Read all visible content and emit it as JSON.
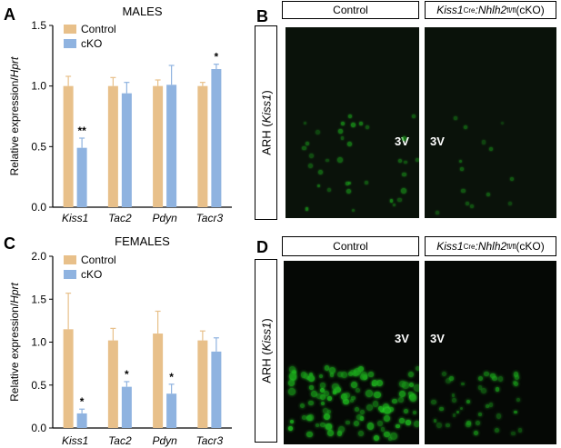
{
  "panels": {
    "A": "A",
    "B": "B",
    "C": "C",
    "D": "D"
  },
  "colors": {
    "control": "#E8C08A",
    "cko": "#8FB3E0",
    "gfp": "#2BD62B"
  },
  "chart_data": [
    {
      "type": "bar",
      "title": "MALES",
      "ylabel": "Relative expression/Hprt",
      "ylabel_plain": "Relative expression/",
      "ylabel_italic": "Hprt",
      "categories": [
        "Kiss1",
        "Tac2",
        "Pdyn",
        "Tacr3"
      ],
      "yticks": [
        "0.0",
        "0.5",
        "1.0",
        "1.5"
      ],
      "ylim": [
        0,
        1.5
      ],
      "legend": [
        "Control",
        "cKO"
      ],
      "series": [
        {
          "name": "Control",
          "values": [
            1.0,
            1.0,
            1.0,
            1.0
          ],
          "errors": [
            0.08,
            0.07,
            0.05,
            0.03
          ]
        },
        {
          "name": "cKO",
          "values": [
            0.49,
            0.94,
            1.01,
            1.14
          ],
          "errors": [
            0.08,
            0.09,
            0.16,
            0.04
          ]
        }
      ],
      "annotations": [
        {
          "category": "Kiss1",
          "series": "cKO",
          "text": "**"
        },
        {
          "category": "Tacr3",
          "series": "cKO",
          "text": "*"
        }
      ]
    },
    {
      "type": "bar",
      "title": "FEMALES",
      "ylabel": "Relative expression/Hprt",
      "ylabel_plain": "Relative expression/",
      "ylabel_italic": "Hprt",
      "categories": [
        "Kiss1",
        "Tac2",
        "Pdyn",
        "Tacr3"
      ],
      "yticks": [
        "0.0",
        "0.5",
        "1.0",
        "1.5",
        "2.0"
      ],
      "ylim": [
        0,
        2.0
      ],
      "legend": [
        "Control",
        "cKO"
      ],
      "series": [
        {
          "name": "Control",
          "values": [
            1.15,
            1.02,
            1.1,
            1.02
          ],
          "errors": [
            0.42,
            0.14,
            0.26,
            0.11
          ]
        },
        {
          "name": "cKO",
          "values": [
            0.17,
            0.48,
            0.4,
            0.89
          ],
          "errors": [
            0.05,
            0.06,
            0.11,
            0.16
          ]
        }
      ],
      "annotations": [
        {
          "category": "Kiss1",
          "series": "cKO",
          "text": "*"
        },
        {
          "category": "Tac2",
          "series": "cKO",
          "text": "*"
        },
        {
          "category": "Pdyn",
          "series": "cKO",
          "text": "*"
        }
      ]
    }
  ],
  "micrographs": {
    "B": {
      "header_control": "Control",
      "header_cko_prefix": "Kiss1",
      "header_cko_sup1": "Cre",
      "header_cko_mid": ":Nhlh2",
      "header_cko_sup2": "fl/fl",
      "header_cko_suffix": " (cKO)",
      "side_label_prefix": "ARH (",
      "side_label_italic": "Kiss1",
      "side_label_suffix": ")",
      "v3_left": "3V",
      "v3_right": "3V"
    },
    "D": {
      "header_control": "Control",
      "header_cko_prefix": "Kiss1",
      "header_cko_sup1": "Cre",
      "header_cko_mid": ":Nhlh2",
      "header_cko_sup2": "fl/fl",
      "header_cko_suffix": " (cKO)",
      "side_label_prefix": "ARH (",
      "side_label_italic": "Kiss1",
      "side_label_suffix": ")",
      "v3_left": "3V",
      "v3_right": "3V"
    }
  }
}
